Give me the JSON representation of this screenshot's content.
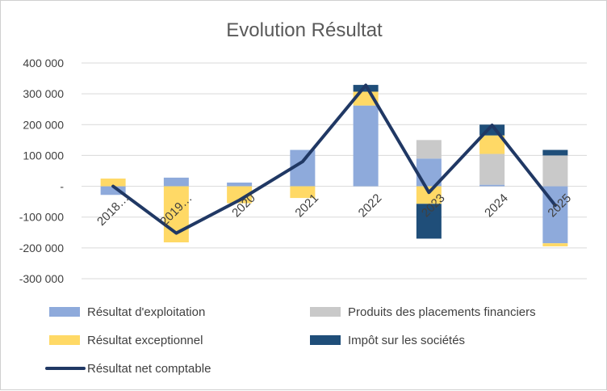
{
  "chart_data": {
    "type": "bar",
    "title": "Evolution Résultat",
    "xlabel": "",
    "ylabel": "",
    "ylim": [
      -300000,
      400000
    ],
    "yticks": [
      {
        "value": 400000,
        "label": "400 000"
      },
      {
        "value": 300000,
        "label": "300 000"
      },
      {
        "value": 200000,
        "label": "200 000"
      },
      {
        "value": 100000,
        "label": "100 000"
      },
      {
        "value": 0,
        "label": "-"
      },
      {
        "value": -100000,
        "label": "-100 000"
      },
      {
        "value": -200000,
        "label": "-200 000"
      },
      {
        "value": -300000,
        "label": "-300 000"
      }
    ],
    "categories": [
      "2018…",
      "2019…",
      "2020",
      "2021",
      "2022",
      "2023",
      "2024",
      "2025"
    ],
    "grid": true,
    "legend_position": "bottom",
    "stacked": true,
    "series": [
      {
        "name": "Résultat d'exploitation",
        "type": "bar",
        "color": "#8eaadb",
        "values": [
          -28000,
          28000,
          12000,
          118000,
          262000,
          90000,
          5000,
          -185000
        ]
      },
      {
        "name": "Produits des placements financiers",
        "type": "bar",
        "color": "#c9c9c9",
        "values": [
          0,
          0,
          0,
          0,
          0,
          60000,
          100000,
          100000
        ]
      },
      {
        "name": "Résultat exceptionnel",
        "type": "bar",
        "color": "#ffd966",
        "values": [
          25000,
          -182000,
          -55000,
          -38000,
          45000,
          -57000,
          60000,
          -10000
        ]
      },
      {
        "name": "Impôt sur les sociétés",
        "type": "bar",
        "color": "#1f4e79",
        "values": [
          0,
          0,
          0,
          0,
          22000,
          -113000,
          35000,
          18000
        ]
      },
      {
        "name": "Résultat net comptable",
        "type": "line",
        "color": "#203864",
        "values": [
          0,
          -152000,
          -45000,
          80000,
          328000,
          -20000,
          198000,
          -62000
        ]
      }
    ]
  }
}
